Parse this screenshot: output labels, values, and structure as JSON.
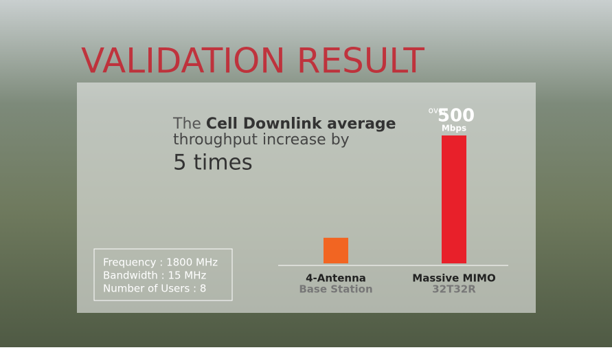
{
  "title": "VALIDATION RESULT",
  "headline": [
    "The",
    "Cell Downlink average",
    "throughput increase by",
    "5 times"
  ],
  "specs": [
    "Frequency : 1800 MHz",
    "Bandwidth : 15 MHz",
    "Number of Users : 8"
  ],
  "chart_data": {
    "type": "bar",
    "categories": [
      "4-Antenna",
      "Massive MIMO"
    ],
    "subcategories": [
      "Base Station",
      "32T32R"
    ],
    "values": [
      100,
      500
    ],
    "value_labels": [
      null,
      "500"
    ],
    "value_prefix": "over",
    "value_unit": "Mbps",
    "colors": [
      "#f26522",
      "#e8202a"
    ]
  }
}
